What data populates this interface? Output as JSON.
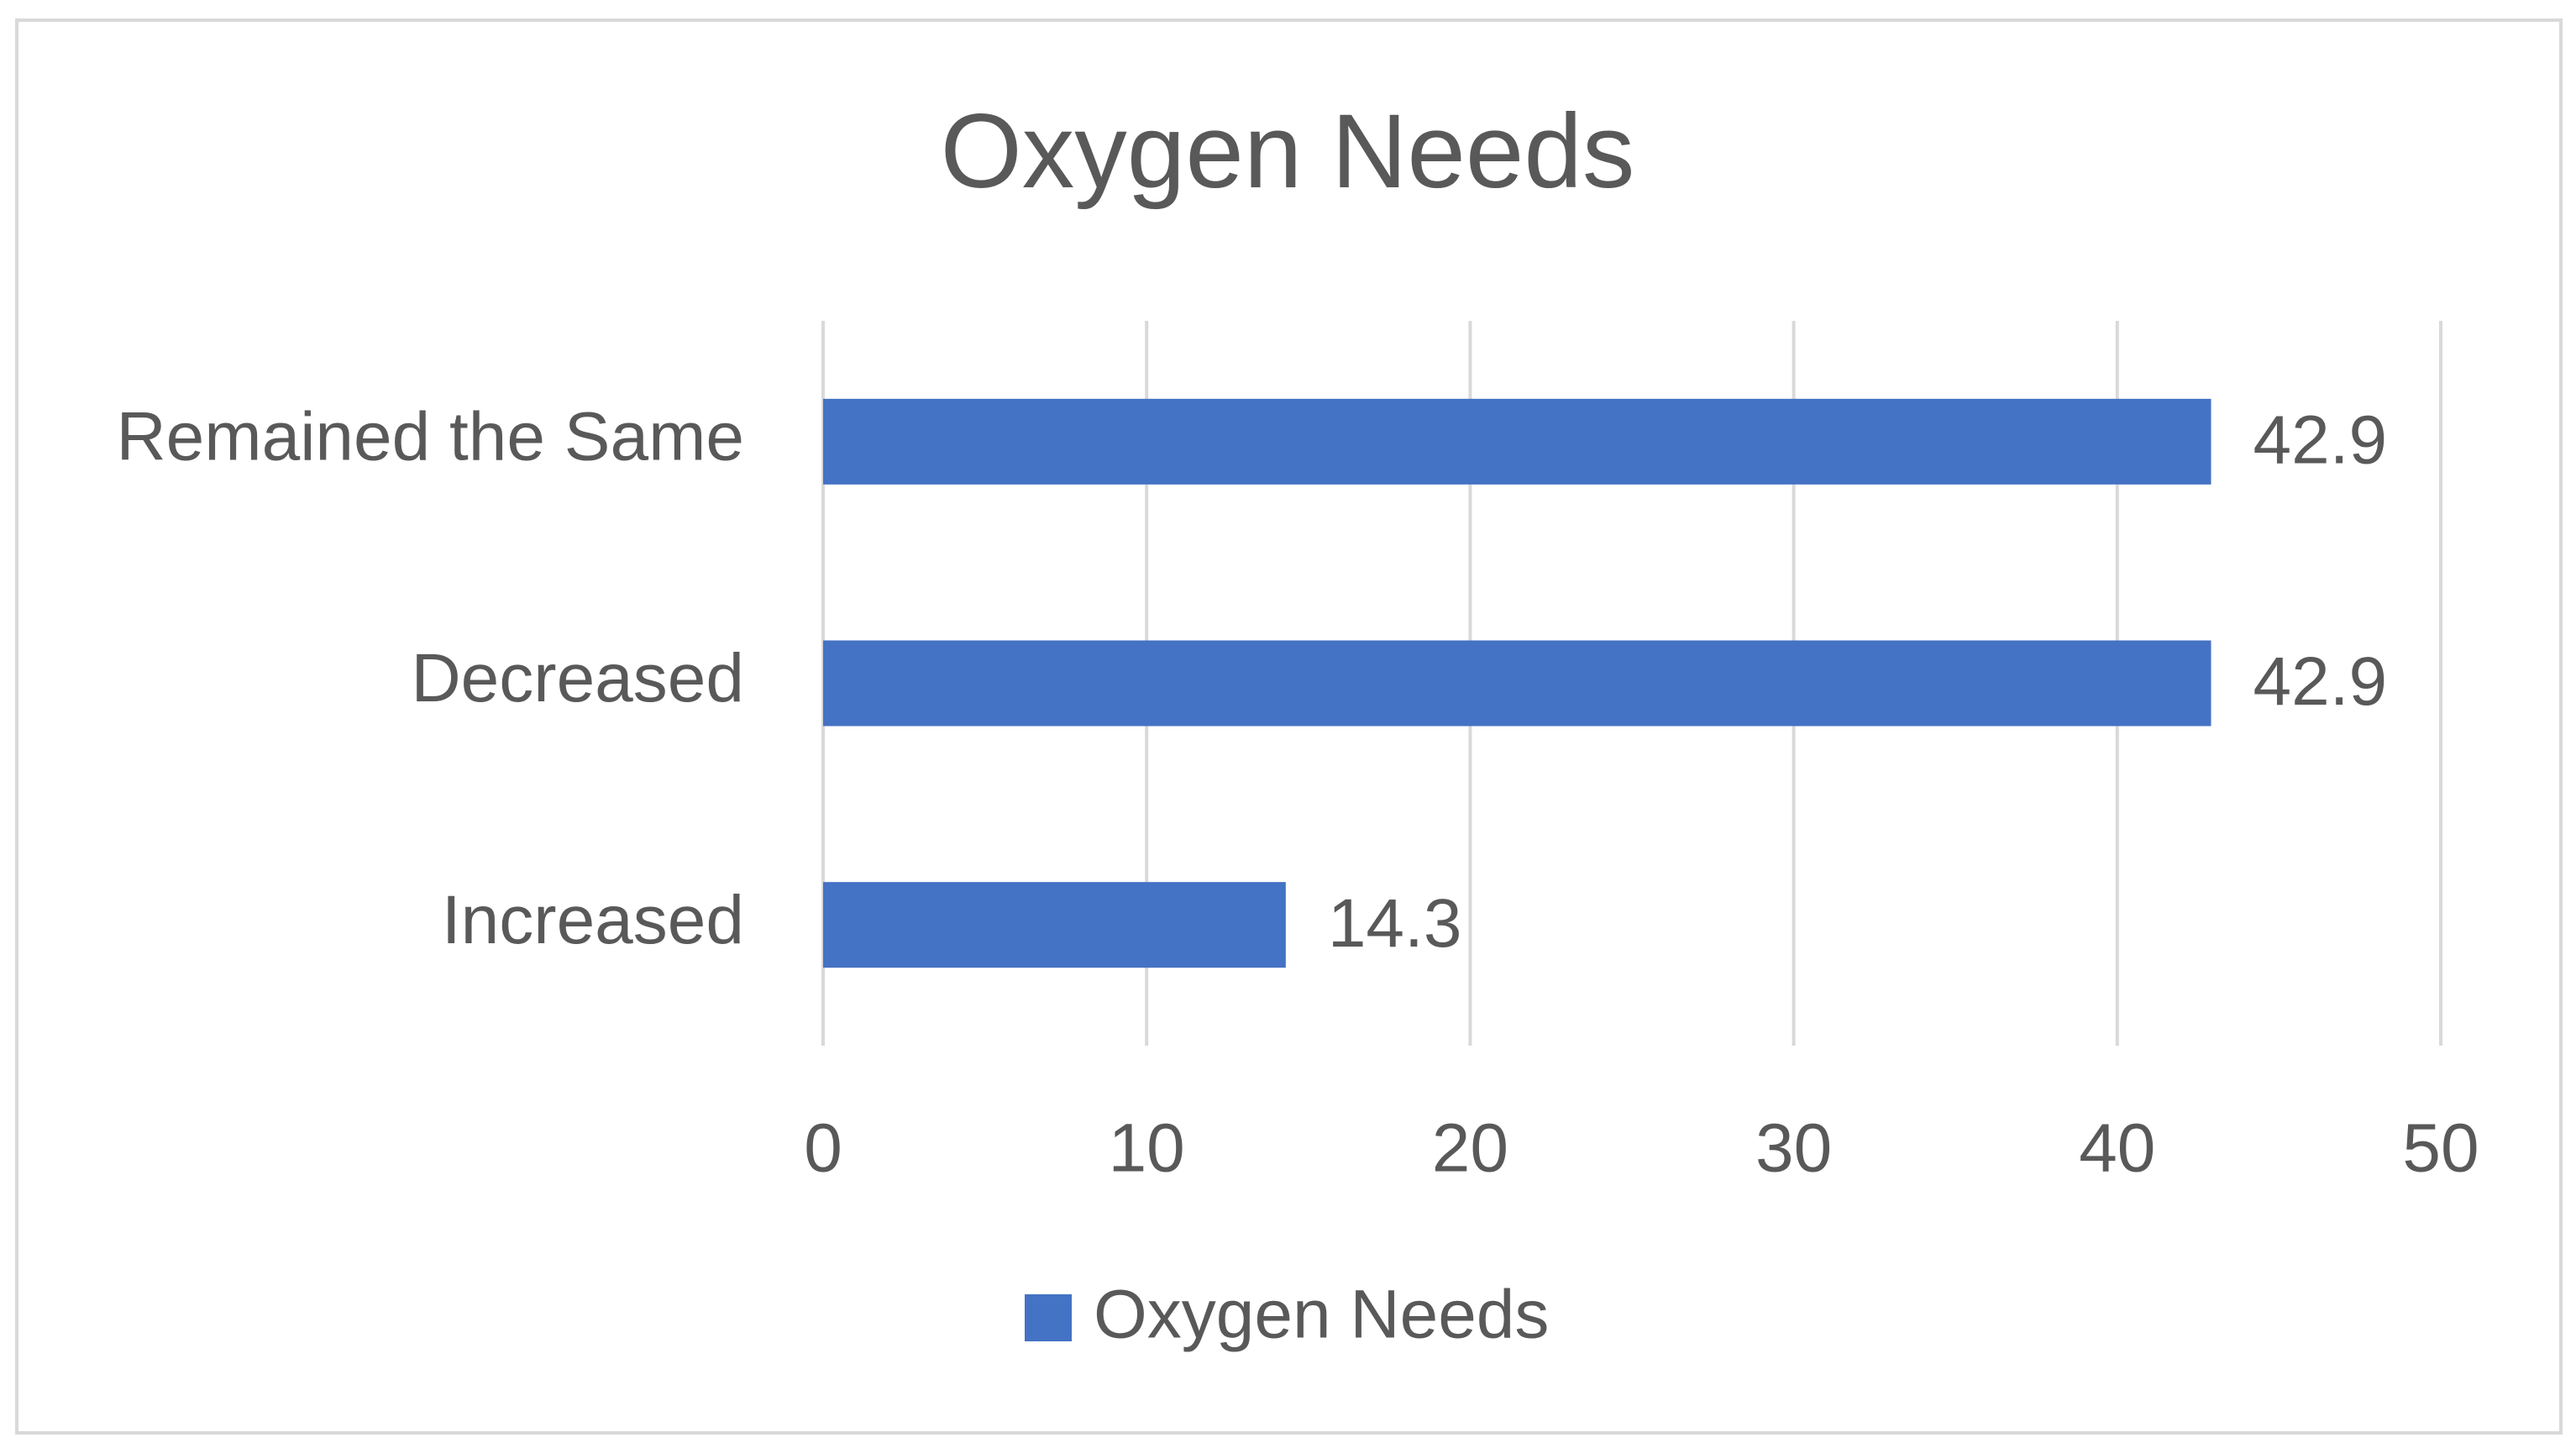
{
  "chart_data": {
    "type": "bar",
    "orientation": "horizontal",
    "title": "Oxygen Needs",
    "categories": [
      "Remained the Same",
      "Decreased",
      "Increased"
    ],
    "series": [
      {
        "name": "Oxygen Needs",
        "color": "#4472c4",
        "values": [
          42.9,
          42.9,
          14.3
        ]
      }
    ],
    "xlim": [
      0,
      50
    ],
    "xticks": [
      0,
      10,
      20,
      30,
      40,
      50
    ],
    "grid": true,
    "legend": "bottom"
  }
}
